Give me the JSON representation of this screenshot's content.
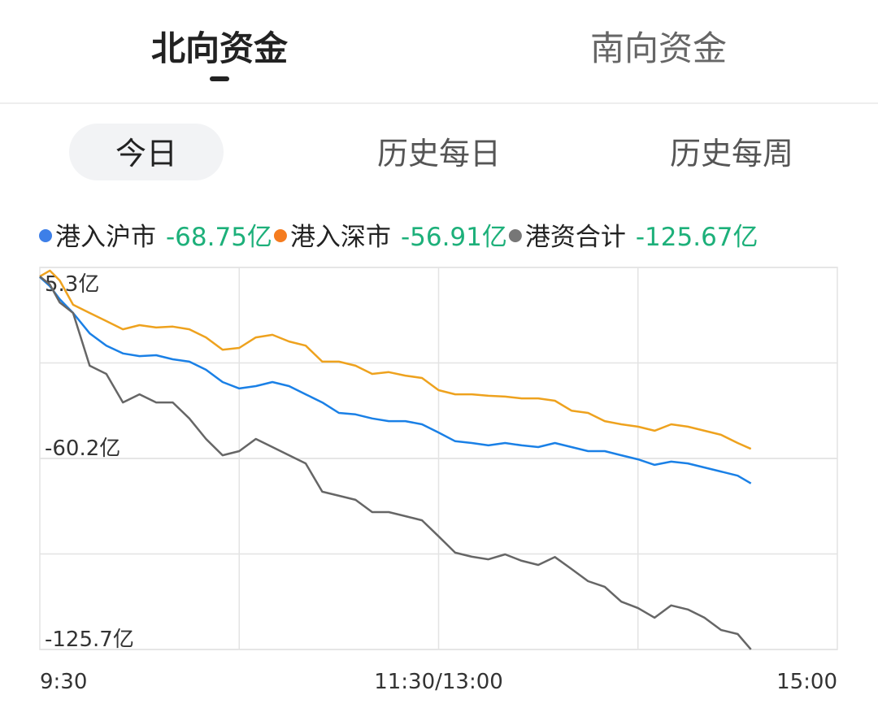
{
  "tabs": [
    "北向资金",
    "南向资金"
  ],
  "subtabs": [
    "今日",
    "历史每日",
    "历史每周"
  ],
  "chart_data": {
    "type": "line",
    "x": [
      0,
      3,
      6,
      10,
      15,
      20,
      25,
      30,
      35,
      40,
      45,
      50,
      55,
      60,
      65,
      70,
      75,
      80,
      85,
      90,
      95,
      100,
      105,
      110,
      115,
      120,
      125,
      130,
      135,
      140,
      145,
      150,
      155,
      160,
      165,
      170,
      175,
      180,
      185,
      190,
      195,
      200,
      205,
      210,
      214
    ],
    "xlim": [
      0,
      240
    ],
    "xticks": [
      {
        "value": 0,
        "label": "9:30"
      },
      {
        "value": 120,
        "label": "11:30/13:00"
      },
      {
        "value": 240,
        "label": "15:00"
      }
    ],
    "ylim": [
      -125.7,
      5.3
    ],
    "yticks": [
      {
        "value": 5.3,
        "label": "5.3亿"
      },
      {
        "value": -60.2,
        "label": "-60.2亿"
      },
      {
        "value": -125.7,
        "label": "-125.7亿"
      }
    ],
    "grid": true,
    "series": [
      {
        "name": "港入沪市",
        "color": "#1a80e6",
        "dot_color": "#3d7fe8",
        "total": -68.75,
        "total_label": "-68.75亿",
        "values": [
          2.0,
          -1.1,
          -5.6,
          -10.3,
          -17.3,
          -21.5,
          -24.2,
          -25.1,
          -24.8,
          -26.2,
          -27.0,
          -29.8,
          -34.0,
          -36.2,
          -35.4,
          -34.0,
          -35.4,
          -38.2,
          -41.0,
          -44.6,
          -45.1,
          -46.5,
          -47.4,
          -47.4,
          -48.5,
          -51.3,
          -54.3,
          -54.9,
          -55.7,
          -54.9,
          -55.7,
          -56.3,
          -54.9,
          -56.3,
          -57.7,
          -57.7,
          -59.1,
          -60.5,
          -62.4,
          -61.3,
          -61.9,
          -63.3,
          -64.7,
          -66.1,
          -68.75
        ]
      },
      {
        "name": "港入深市",
        "color": "#eea21e",
        "dot_color": "#f57c1f",
        "total": -56.91,
        "total_label": "-56.91亿",
        "values": [
          2.2,
          4.2,
          0.8,
          -7.5,
          -10.3,
          -13.1,
          -15.9,
          -14.5,
          -15.3,
          -15.0,
          -15.9,
          -18.7,
          -22.9,
          -22.3,
          -18.7,
          -17.8,
          -20.1,
          -21.5,
          -27.0,
          -27.0,
          -28.4,
          -31.2,
          -30.6,
          -31.8,
          -32.6,
          -36.8,
          -38.2,
          -38.2,
          -38.7,
          -39.0,
          -39.6,
          -39.6,
          -40.4,
          -43.8,
          -44.6,
          -47.4,
          -48.5,
          -49.3,
          -50.7,
          -48.5,
          -49.3,
          -50.7,
          -52.1,
          -54.9,
          -56.91
        ]
      },
      {
        "name": "港资合计",
        "color": "#666666",
        "dot_color": "#777777",
        "total": -125.67,
        "total_label": "-125.67亿",
        "values": [
          2.2,
          -0.55,
          -6.7,
          -10.3,
          -28.4,
          -31.2,
          -41.0,
          -38.2,
          -41.0,
          -41.0,
          -46.5,
          -53.5,
          -59.1,
          -57.7,
          -53.5,
          -56.3,
          -59.1,
          -61.9,
          -71.6,
          -73.0,
          -74.4,
          -78.6,
          -78.6,
          -80.0,
          -81.4,
          -86.9,
          -92.5,
          -93.9,
          -94.8,
          -93.1,
          -95.3,
          -96.7,
          -94.0,
          -98.1,
          -102.3,
          -104.2,
          -109.3,
          -111.5,
          -114.8,
          -110.6,
          -112.0,
          -114.8,
          -119.0,
          -120.4,
          -125.67
        ]
      }
    ]
  }
}
